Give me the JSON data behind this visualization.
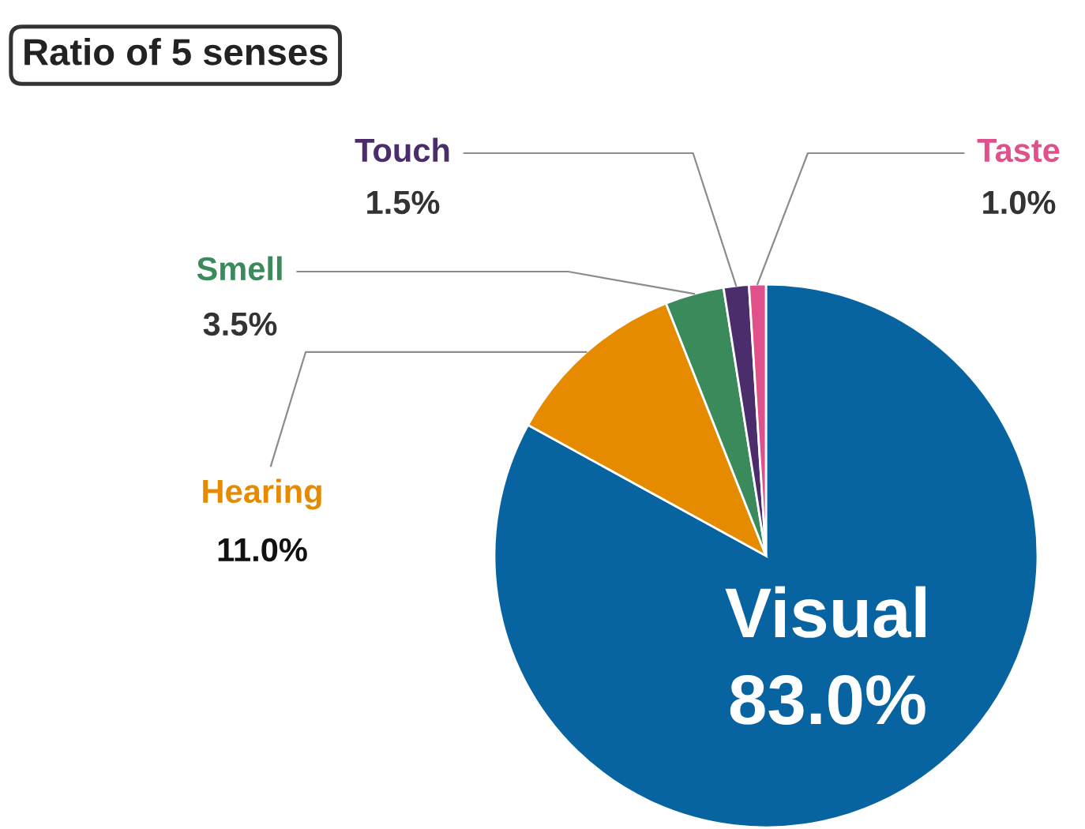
{
  "chart_data": {
    "type": "pie",
    "title": "Ratio of 5 senses",
    "categories": [
      "Visual",
      "Hearing",
      "Smell",
      "Touch",
      "Taste"
    ],
    "values": [
      83.0,
      11.0,
      3.5,
      1.5,
      1.0
    ],
    "value_labels": [
      "83.0%",
      "11.0%",
      "3.5%",
      "1.5%",
      "1.0%"
    ],
    "colors": [
      "#0863a1",
      "#e68a00",
      "#3a8a5c",
      "#4b2d6b",
      "#e0508a"
    ],
    "legend": false
  }
}
